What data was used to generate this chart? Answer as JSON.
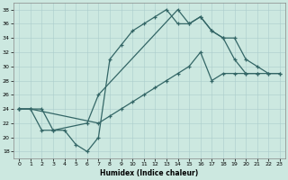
{
  "xlabel": "Humidex (Indice chaleur)",
  "xlim": [
    -0.5,
    23.5
  ],
  "ylim": [
    17,
    39
  ],
  "xticks": [
    0,
    1,
    2,
    3,
    4,
    5,
    6,
    7,
    8,
    9,
    10,
    11,
    12,
    13,
    14,
    15,
    16,
    17,
    18,
    19,
    20,
    21,
    22,
    23
  ],
  "yticks": [
    18,
    20,
    22,
    24,
    26,
    28,
    30,
    32,
    34,
    36,
    38
  ],
  "bg_color": "#cce8e0",
  "grid_color": "#aacccc",
  "line_color": "#336666",
  "line1_x": [
    0,
    1,
    2,
    3,
    4,
    5,
    6,
    7,
    8,
    9,
    10,
    11,
    12,
    13,
    14,
    15,
    16,
    17,
    18,
    19,
    20,
    21
  ],
  "line1_y": [
    24,
    24,
    21,
    21,
    21,
    19,
    18,
    20,
    31,
    33,
    35,
    36,
    37,
    38,
    36,
    36,
    37,
    35,
    34,
    31,
    29,
    29
  ],
  "line2_x": [
    0,
    2,
    3,
    6,
    7,
    14,
    15,
    16,
    17,
    18,
    19,
    20,
    21,
    22,
    23
  ],
  "line2_y": [
    24,
    24,
    21,
    22,
    26,
    38,
    36,
    37,
    35,
    34,
    34,
    31,
    30,
    29,
    29
  ],
  "line3_x": [
    0,
    1,
    7,
    8,
    9,
    10,
    11,
    12,
    13,
    14,
    15,
    16,
    17,
    18,
    19,
    20,
    21,
    22,
    23
  ],
  "line3_y": [
    24,
    24,
    22,
    23,
    24,
    25,
    26,
    27,
    28,
    29,
    30,
    32,
    28,
    29,
    29,
    29,
    29,
    29,
    29
  ]
}
